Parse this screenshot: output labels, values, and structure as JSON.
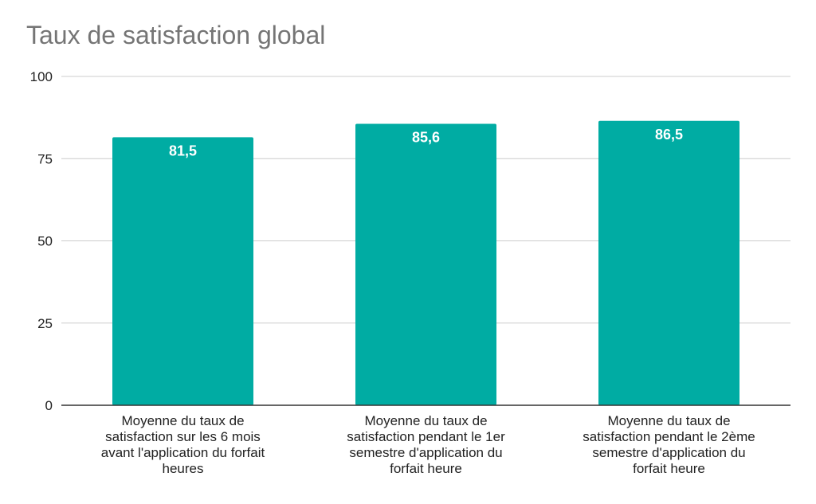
{
  "chart_data": {
    "type": "bar",
    "title": "Taux de satisfaction global",
    "xlabel": "",
    "ylabel": "",
    "ylim": [
      0,
      100
    ],
    "yticks": [
      0,
      25,
      50,
      75,
      100
    ],
    "grid": true,
    "categories": [
      "Moyenne du taux de satisfaction sur les 6 mois avant l'application du forfait heures",
      "Moyenne du taux de satisfaction pendant le 1er semestre d'application du forfait heure",
      "Moyenne du taux de satisfaction pendant le 2ème semestre d'application du forfait heure"
    ],
    "category_lines": [
      [
        "Moyenne du taux de",
        "satisfaction sur les 6 mois",
        "avant l'application du forfait",
        "heures"
      ],
      [
        "Moyenne du taux de",
        "satisfaction pendant le 1er",
        "semestre d'application du",
        "forfait heure"
      ],
      [
        "Moyenne du taux de",
        "satisfaction pendant le 2ème",
        "semestre d'application du",
        "forfait heure"
      ]
    ],
    "values": [
      81.5,
      85.6,
      86.5
    ],
    "data_labels": [
      "81,5",
      "85,6",
      "86,5"
    ],
    "bar_color": "#00ACA3",
    "grid_color": "#CCCCCC",
    "axis_color": "#333333"
  }
}
